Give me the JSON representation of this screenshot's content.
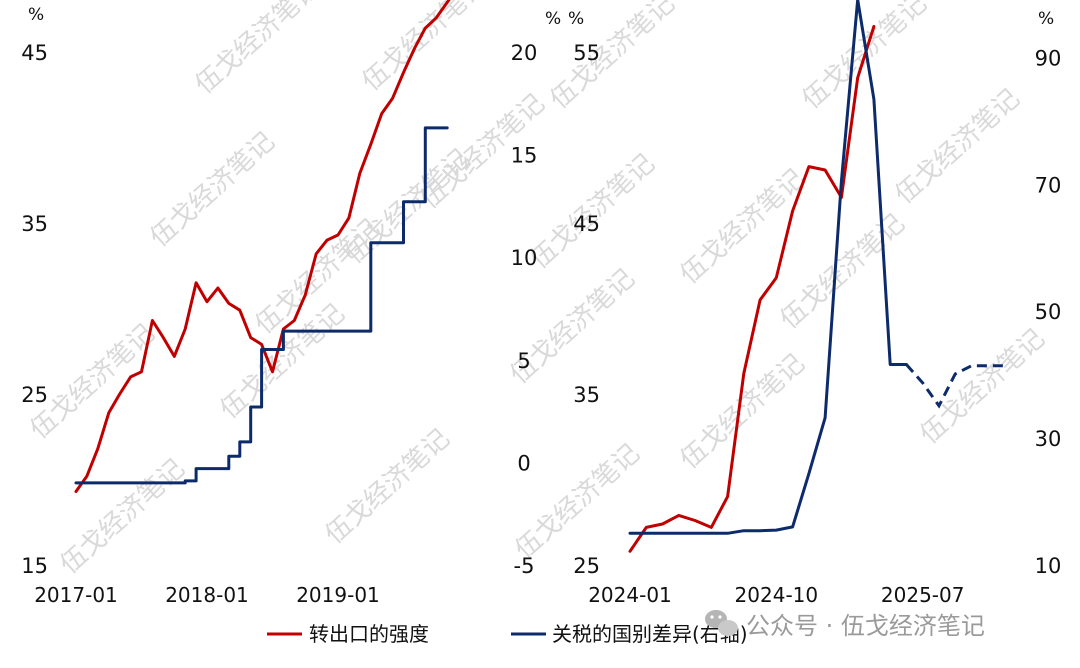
{
  "colors": {
    "red": "#c00000",
    "navy": "#0d2b6b",
    "watermark": "#d9d9d9",
    "footer": "#9a9a9a"
  },
  "watermark_text": "伍戈经济笔记",
  "footer": {
    "text": "公众号 · 伍戈经济笔记",
    "icon": "wechat-icon"
  },
  "legend": [
    {
      "label": "转出口的强度",
      "color": "#c00000"
    },
    {
      "label": "关税的国别差异(右轴)",
      "color": "#0d2b6b"
    }
  ],
  "chart_data": [
    {
      "type": "line",
      "title": "",
      "left_unit": "%",
      "right_unit": "%",
      "x_ticks": [
        "2017-01",
        "2018-01",
        "2019-01"
      ],
      "y_left": {
        "range": [
          15,
          45
        ],
        "ticks": [
          "45",
          "35",
          "25",
          "15"
        ]
      },
      "y_right": {
        "range": [
          -5,
          20
        ],
        "ticks": [
          "20",
          "15",
          "10",
          "5",
          "0",
          "-5"
        ]
      },
      "grid": false,
      "series": [
        {
          "name": "转出口的强度",
          "axis": "left",
          "style": "solid",
          "x": [
            "2017-01",
            "2017-02",
            "2017-03",
            "2017-04",
            "2017-05",
            "2017-06",
            "2017-07",
            "2017-08",
            "2017-09",
            "2017-10",
            "2017-11",
            "2017-12",
            "2018-01",
            "2018-02",
            "2018-03",
            "2018-04",
            "2018-05",
            "2018-06",
            "2018-07",
            "2018-08",
            "2018-09",
            "2018-10",
            "2018-11",
            "2018-12",
            "2019-01",
            "2019-02",
            "2019-03",
            "2019-04",
            "2019-05",
            "2019-06",
            "2019-07",
            "2019-08",
            "2019-09",
            "2019-10",
            "2019-11",
            "2019-12",
            "2020-01"
          ],
          "values": [
            19.3,
            20.2,
            21.8,
            23.9,
            25.0,
            26.0,
            26.3,
            29.3,
            28.3,
            27.2,
            28.8,
            31.5,
            30.4,
            31.2,
            30.3,
            29.9,
            28.3,
            27.9,
            26.3,
            28.8,
            29.3,
            30.8,
            33.2,
            34.0,
            34.3,
            35.3,
            37.9,
            39.6,
            41.4,
            42.3,
            43.8,
            45.2,
            46.4,
            47.0,
            47.9,
            48.8,
            49.7
          ]
        },
        {
          "name": "关税的国别差异(右轴)",
          "axis": "right",
          "style": "step",
          "x": [
            "2017-01",
            "2017-02",
            "2017-03",
            "2017-04",
            "2017-05",
            "2017-06",
            "2017-07",
            "2017-08",
            "2017-09",
            "2017-10",
            "2017-11",
            "2017-12",
            "2018-01",
            "2018-02",
            "2018-03",
            "2018-04",
            "2018-05",
            "2018-06",
            "2018-07",
            "2018-08",
            "2018-09",
            "2018-10",
            "2018-11",
            "2018-12",
            "2019-01",
            "2019-02",
            "2019-03",
            "2019-04",
            "2019-05",
            "2019-06",
            "2019-07",
            "2019-08",
            "2019-09",
            "2019-10",
            "2019-11"
          ],
          "values": [
            -1.0,
            -1.0,
            -1.0,
            -1.0,
            -1.0,
            -1.0,
            -1.0,
            -1.0,
            -1.0,
            -1.0,
            -0.9,
            -0.3,
            -0.3,
            -0.3,
            0.3,
            1.0,
            2.7,
            5.5,
            5.5,
            6.4,
            6.4,
            6.4,
            6.4,
            6.4,
            6.4,
            6.4,
            6.4,
            10.7,
            10.7,
            10.7,
            12.7,
            12.7,
            16.3,
            16.3,
            16.3
          ]
        }
      ]
    },
    {
      "type": "line",
      "title": "",
      "left_unit": "%",
      "right_unit": "%",
      "x_ticks": [
        "2024-01",
        "2024-10",
        "2025-07"
      ],
      "y_left": {
        "range": [
          25,
          55
        ],
        "ticks": [
          "55",
          "45",
          "35",
          "25"
        ]
      },
      "y_right": {
        "range": [
          10,
          100
        ],
        "ticks": [
          "90",
          "70",
          "50",
          "30",
          "10"
        ]
      },
      "grid": false,
      "series": [
        {
          "name": "转出口的强度",
          "axis": "left",
          "style": "solid",
          "x": [
            "2024-01",
            "2024-02",
            "2024-03",
            "2024-04",
            "2024-05",
            "2024-06",
            "2024-07",
            "2024-08",
            "2024-09",
            "2024-10",
            "2024-11",
            "2024-12",
            "2025-01",
            "2025-02",
            "2025-03",
            "2025-04"
          ],
          "values": [
            25.8,
            27.2,
            27.4,
            27.9,
            27.6,
            27.2,
            29.0,
            36.2,
            40.5,
            41.8,
            45.7,
            48.3,
            48.1,
            46.5,
            53.5,
            56.5
          ]
        },
        {
          "name": "关税的国别差异(右轴)",
          "axis": "right",
          "style": "solid",
          "x": [
            "2024-01",
            "2024-02",
            "2024-03",
            "2024-04",
            "2024-05",
            "2024-06",
            "2024-07",
            "2024-08",
            "2024-09",
            "2024-10",
            "2024-11",
            "2024-12",
            "2025-01",
            "2025-02",
            "2025-03",
            "2025-04",
            "2025-05",
            "2025-06"
          ],
          "values": [
            15.0,
            15.0,
            15.0,
            15.0,
            15.0,
            15.0,
            15.0,
            15.4,
            15.4,
            15.5,
            16.0,
            24.4,
            33.2,
            70.5,
            99.1,
            83.4,
            41.6,
            41.6
          ],
          "projection": {
            "style": "dashed",
            "x": [
              "2025-06",
              "2025-07",
              "2025-08",
              "2025-09",
              "2025-10",
              "2025-11",
              "2025-12"
            ],
            "values": [
              41.6,
              38.7,
              35.1,
              40.1,
              41.4,
              41.4,
              41.4
            ]
          }
        }
      ]
    }
  ]
}
